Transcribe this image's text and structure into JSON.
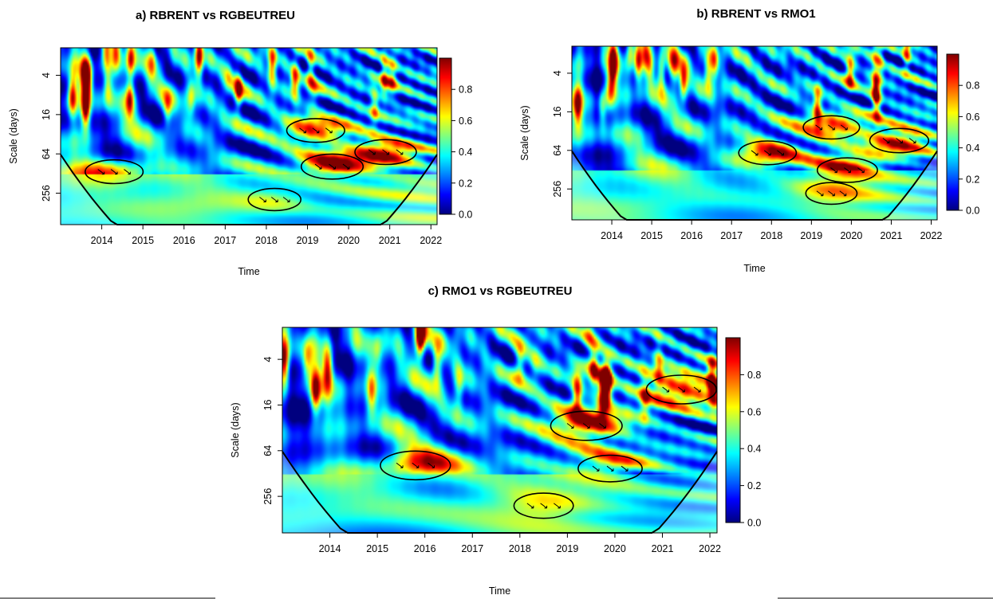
{
  "chart_data": [
    {
      "type": "heatmap",
      "title": "a) RBRENT vs RGBEUTREU",
      "xlabel": "Time",
      "ylabel": "Scale (days)",
      "x_ticks": [
        "2014",
        "2015",
        "2016",
        "2017",
        "2018",
        "2019",
        "2020",
        "2021",
        "2022"
      ],
      "y_ticks": [
        "4",
        "16",
        "64",
        "256"
      ],
      "colorbar_ticks": [
        "0.0",
        "0.2",
        "0.4",
        "0.6",
        "0.8"
      ],
      "zlim": [
        0,
        1
      ],
      "y_scale": "log2",
      "colormap": [
        "#00007f",
        "#0000ff",
        "#007fff",
        "#00ffff",
        "#7fff7f",
        "#ffff00",
        "#ff7f00",
        "#ff0000",
        "#7f0000"
      ],
      "regions": [
        {
          "x": 2019.6,
          "scale": 100,
          "value": 0.95
        },
        {
          "x": 2020.9,
          "scale": 60,
          "value": 0.93
        },
        {
          "x": 2019.2,
          "scale": 28,
          "value": 0.8
        },
        {
          "x": 2014.3,
          "scale": 120,
          "value": 0.8
        },
        {
          "x": 2018.2,
          "scale": 320,
          "value": 0.6
        }
      ]
    },
    {
      "type": "heatmap",
      "title": "b) RBRENT vs RMO1",
      "xlabel": "Time",
      "ylabel": "Scale (days)",
      "x_ticks": [
        "2014",
        "2015",
        "2016",
        "2017",
        "2018",
        "2019",
        "2020",
        "2021",
        "2022"
      ],
      "y_ticks": [
        "4",
        "16",
        "64",
        "256"
      ],
      "colorbar_ticks": [
        "0.0",
        "0.2",
        "0.4",
        "0.6",
        "0.8"
      ],
      "zlim": [
        0,
        1
      ],
      "y_scale": "log2",
      "colormap": [
        "#00007f",
        "#0000ff",
        "#007fff",
        "#00ffff",
        "#7fff7f",
        "#ffff00",
        "#ff7f00",
        "#ff0000",
        "#7f0000"
      ],
      "regions": [
        {
          "x": 2019.9,
          "scale": 130,
          "value": 0.95
        },
        {
          "x": 2017.9,
          "scale": 70,
          "value": 0.85
        },
        {
          "x": 2021.2,
          "scale": 45,
          "value": 0.9
        },
        {
          "x": 2019.5,
          "scale": 28,
          "value": 0.8
        },
        {
          "x": 2019.5,
          "scale": 300,
          "value": 0.6
        }
      ]
    },
    {
      "type": "heatmap",
      "title": "c) RMO1 vs RGBEUTREU",
      "xlabel": "Time",
      "ylabel": "Scale (days)",
      "x_ticks": [
        "2014",
        "2015",
        "2016",
        "2017",
        "2018",
        "2019",
        "2020",
        "2021",
        "2022"
      ],
      "y_ticks": [
        "4",
        "16",
        "64",
        "256"
      ],
      "colorbar_ticks": [
        "0.0",
        "0.2",
        "0.4",
        "0.6",
        "0.8"
      ],
      "zlim": [
        0,
        1
      ],
      "y_scale": "log2",
      "colormap": [
        "#00007f",
        "#0000ff",
        "#007fff",
        "#00ffff",
        "#7fff7f",
        "#ffff00",
        "#ff7f00",
        "#ff0000",
        "#7f0000"
      ],
      "regions": [
        {
          "x": 2015.8,
          "scale": 100,
          "value": 0.9
        },
        {
          "x": 2019.4,
          "scale": 30,
          "value": 0.95
        },
        {
          "x": 2019.9,
          "scale": 110,
          "value": 0.7
        },
        {
          "x": 2021.4,
          "scale": 10,
          "value": 0.9
        },
        {
          "x": 2018.5,
          "scale": 340,
          "value": 0.55
        }
      ]
    }
  ]
}
